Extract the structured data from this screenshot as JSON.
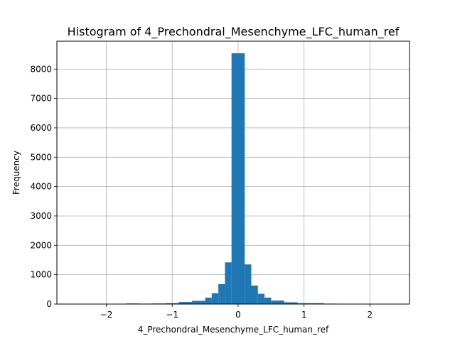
{
  "chart_data": {
    "type": "bar",
    "title": "Histogram of 4_Prechondral_Mesenchyme_LFC_human_ref",
    "xlabel": "4_Prechondral_Mesenchyme_LFC_human_ref",
    "ylabel": "Frequency",
    "xlim": [
      -2.75,
      2.6
    ],
    "ylim": [
      0,
      8950
    ],
    "grid": true,
    "bar_color": "#1f77b4",
    "bin_width": 0.2,
    "bins": [
      {
        "x0": -2.5,
        "count": 2
      },
      {
        "x0": -2.3,
        "count": 3
      },
      {
        "x0": -2.1,
        "count": 5
      },
      {
        "x0": -1.9,
        "count": 8
      },
      {
        "x0": -1.7,
        "count": 20
      },
      {
        "x0": -1.5,
        "count": 15
      },
      {
        "x0": -1.3,
        "count": 20
      },
      {
        "x0": -1.1,
        "count": 30
      },
      {
        "x0": -0.9,
        "count": 70
      },
      {
        "x0": -0.7,
        "count": 110
      },
      {
        "x0": -0.5,
        "count": 220
      },
      {
        "x0": -0.3,
        "count": 680
      },
      {
        "x0": -0.1,
        "count": 8540
      },
      {
        "x0": 0.1,
        "count": 1350
      },
      {
        "x0": 0.3,
        "count": 350
      },
      {
        "x0": 0.5,
        "count": 120
      },
      {
        "x0": 0.7,
        "count": 60
      },
      {
        "x0": 0.9,
        "count": 30
      },
      {
        "x0": 1.1,
        "count": 30
      },
      {
        "x0": 1.3,
        "count": 15
      },
      {
        "x0": 1.5,
        "count": 5
      },
      {
        "x0": 1.7,
        "count": 3
      },
      {
        "x0": 1.9,
        "count": 2
      },
      {
        "x0": 2.1,
        "count": 2
      },
      {
        "x0": 2.3,
        "count": 1
      }
    ],
    "subbins": [
      {
        "x0": -0.5,
        "x1": -0.4,
        "count": 220
      },
      {
        "x0": -0.4,
        "x1": -0.3,
        "count": 370
      },
      {
        "x0": -0.3,
        "x1": -0.2,
        "count": 680
      },
      {
        "x0": -0.2,
        "x1": -0.1,
        "count": 1420
      },
      {
        "x0": 0.1,
        "x1": 0.2,
        "count": 1350
      },
      {
        "x0": 0.2,
        "x1": 0.3,
        "count": 630
      },
      {
        "x0": 0.3,
        "x1": 0.4,
        "count": 350
      },
      {
        "x0": 0.4,
        "x1": 0.5,
        "count": 220
      }
    ],
    "x_ticks": [
      {
        "value": -2,
        "label": "−2"
      },
      {
        "value": -1,
        "label": "−1"
      },
      {
        "value": 0,
        "label": "0"
      },
      {
        "value": 1,
        "label": "1"
      },
      {
        "value": 2,
        "label": "2"
      }
    ],
    "y_ticks": [
      {
        "value": 0,
        "label": "0"
      },
      {
        "value": 1000,
        "label": "1000"
      },
      {
        "value": 2000,
        "label": "2000"
      },
      {
        "value": 3000,
        "label": "3000"
      },
      {
        "value": 4000,
        "label": "4000"
      },
      {
        "value": 5000,
        "label": "5000"
      },
      {
        "value": 6000,
        "label": "6000"
      },
      {
        "value": 7000,
        "label": "7000"
      },
      {
        "value": 8000,
        "label": "8000"
      }
    ]
  }
}
